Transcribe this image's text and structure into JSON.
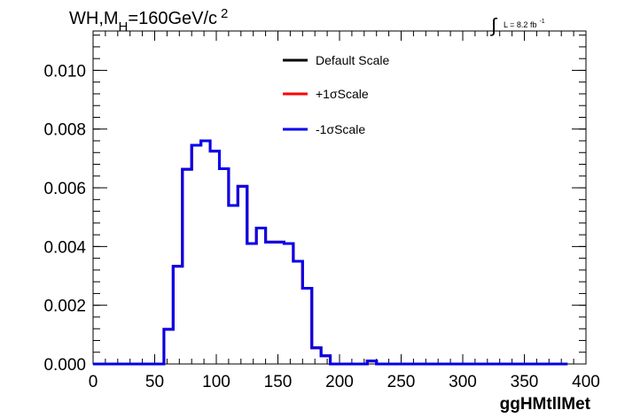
{
  "chart_data": {
    "type": "line",
    "title": {
      "main": "WH,M",
      "sub": "H",
      "rest": "=160GeV/c",
      "sup": "2"
    },
    "lumi": {
      "integral_sign": "∫",
      "text": "L = 8.2 fb",
      "sup": "-1"
    },
    "xlabel": "ggHMtllMet",
    "ylabel": "",
    "xlim": [
      0,
      400
    ],
    "ylim": [
      0,
      0.01134
    ],
    "x_ticks": [
      "0",
      "50",
      "100",
      "150",
      "200",
      "250",
      "300",
      "350",
      "400"
    ],
    "y_ticks": [
      "0.000",
      "0.002",
      "0.004",
      "0.006",
      "0.008",
      "0.010"
    ],
    "bin_edges": [
      0,
      10,
      20,
      30,
      40,
      50,
      57.5,
      65,
      72.5,
      80,
      87.5,
      95,
      102.5,
      110,
      117.5,
      125,
      132.5,
      140,
      147.5,
      155,
      162.5,
      170,
      177.5,
      185,
      192.5,
      200,
      207.5,
      215,
      222.5,
      230,
      237.5,
      245,
      255,
      265,
      275,
      285,
      295,
      305,
      315,
      325,
      335,
      345,
      355,
      365,
      375,
      385,
      400
    ],
    "series": [
      {
        "name": "Default Scale",
        "color": "#000000",
        "values": [
          0,
          0,
          0,
          0,
          0,
          0,
          0.00118,
          0.00333,
          0.00663,
          0.00745,
          0.0076,
          0.00725,
          0.00665,
          0.0054,
          0.00605,
          0.0041,
          0.00463,
          0.00415,
          0.00415,
          0.0041,
          0.0035,
          0.00258,
          0.00055,
          0.00028,
          0,
          0,
          0,
          0,
          0.0001,
          0,
          0,
          0,
          0,
          0,
          0,
          0,
          0,
          0,
          0,
          0,
          0,
          0,
          0,
          0,
          0
        ]
      },
      {
        "name": "+1σScale",
        "color": "#ff0000",
        "values": [
          0,
          0,
          0,
          0,
          0,
          0,
          0.00118,
          0.00333,
          0.00663,
          0.00745,
          0.0076,
          0.00725,
          0.00665,
          0.0054,
          0.00605,
          0.0041,
          0.00463,
          0.00415,
          0.00415,
          0.0041,
          0.0035,
          0.00258,
          0.00055,
          0.00028,
          0,
          0,
          0,
          0,
          0.0001,
          0,
          0,
          0,
          0,
          0,
          0,
          0,
          0,
          0,
          0,
          0,
          0,
          0,
          0,
          0,
          0
        ]
      },
      {
        "name": "-1σScale",
        "color": "#0000ee",
        "values": [
          0,
          0,
          0,
          0,
          0,
          0,
          0.00118,
          0.00333,
          0.00663,
          0.00745,
          0.0076,
          0.00725,
          0.00665,
          0.0054,
          0.00605,
          0.0041,
          0.00463,
          0.00415,
          0.00415,
          0.0041,
          0.0035,
          0.00258,
          0.00055,
          0.00028,
          0,
          0,
          0,
          0,
          0.0001,
          0,
          0,
          0,
          0,
          0,
          0,
          0,
          0,
          0,
          0,
          0,
          0,
          0,
          0,
          0,
          0
        ]
      }
    ],
    "legend_position": "top-center"
  }
}
